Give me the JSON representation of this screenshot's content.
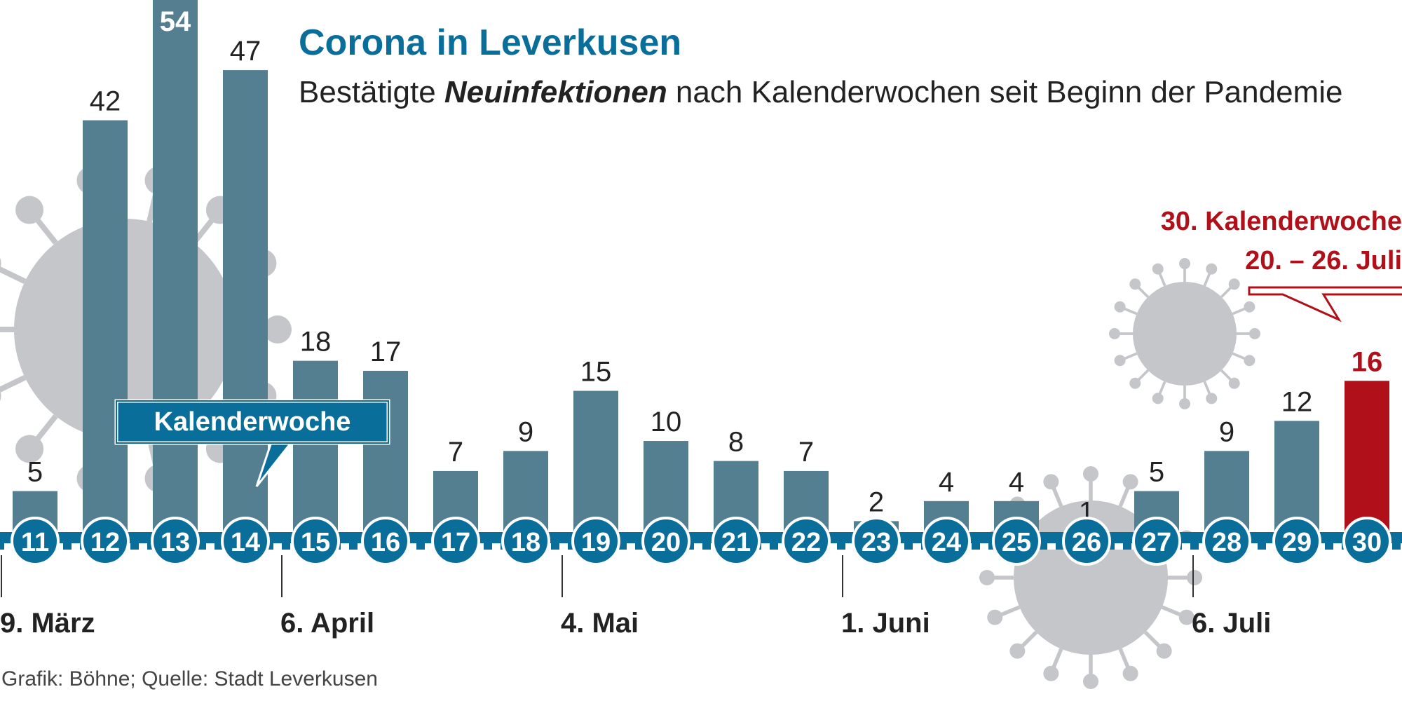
{
  "chart_data": {
    "type": "bar",
    "title": "Corona in Leverkusen",
    "subtitle": {
      "before": "Bestätigte ",
      "emphasis": "Neuinfektionen",
      "after": " nach Kalenderwochen seit Beginn der Pandemie"
    },
    "categories": [
      "11",
      "12",
      "13",
      "14",
      "15",
      "16",
      "17",
      "18",
      "19",
      "20",
      "21",
      "22",
      "23",
      "24",
      "25",
      "26",
      "27",
      "28",
      "29",
      "30"
    ],
    "values": [
      5,
      42,
      54,
      47,
      18,
      17,
      7,
      9,
      15,
      10,
      8,
      7,
      2,
      4,
      4,
      1,
      5,
      9,
      12,
      16
    ],
    "ylim": [
      0,
      54
    ],
    "highlight_index": 19,
    "month_markers": [
      {
        "label": "9. März",
        "week": "11"
      },
      {
        "label": "6. April",
        "week": "15"
      },
      {
        "label": "4. Mai",
        "week": "19"
      },
      {
        "label": "1. Juni",
        "week": "23"
      },
      {
        "label": "6. Juli",
        "week": "28"
      }
    ],
    "axis_callout": "Kalenderwoche",
    "highlight_callout": [
      "30. Kalenderwoche",
      "20. – 26. Juli"
    ],
    "source": "Grafik: Böhne; Quelle: Stadt Leverkusen",
    "colors": {
      "bar": "#537f91",
      "highlight": "#b0101a",
      "title": "#0a6e9b",
      "badge": "#0a6e9b",
      "badge_border": "#ffffff",
      "virus": "#c5c6c9",
      "text": "#222222"
    }
  }
}
